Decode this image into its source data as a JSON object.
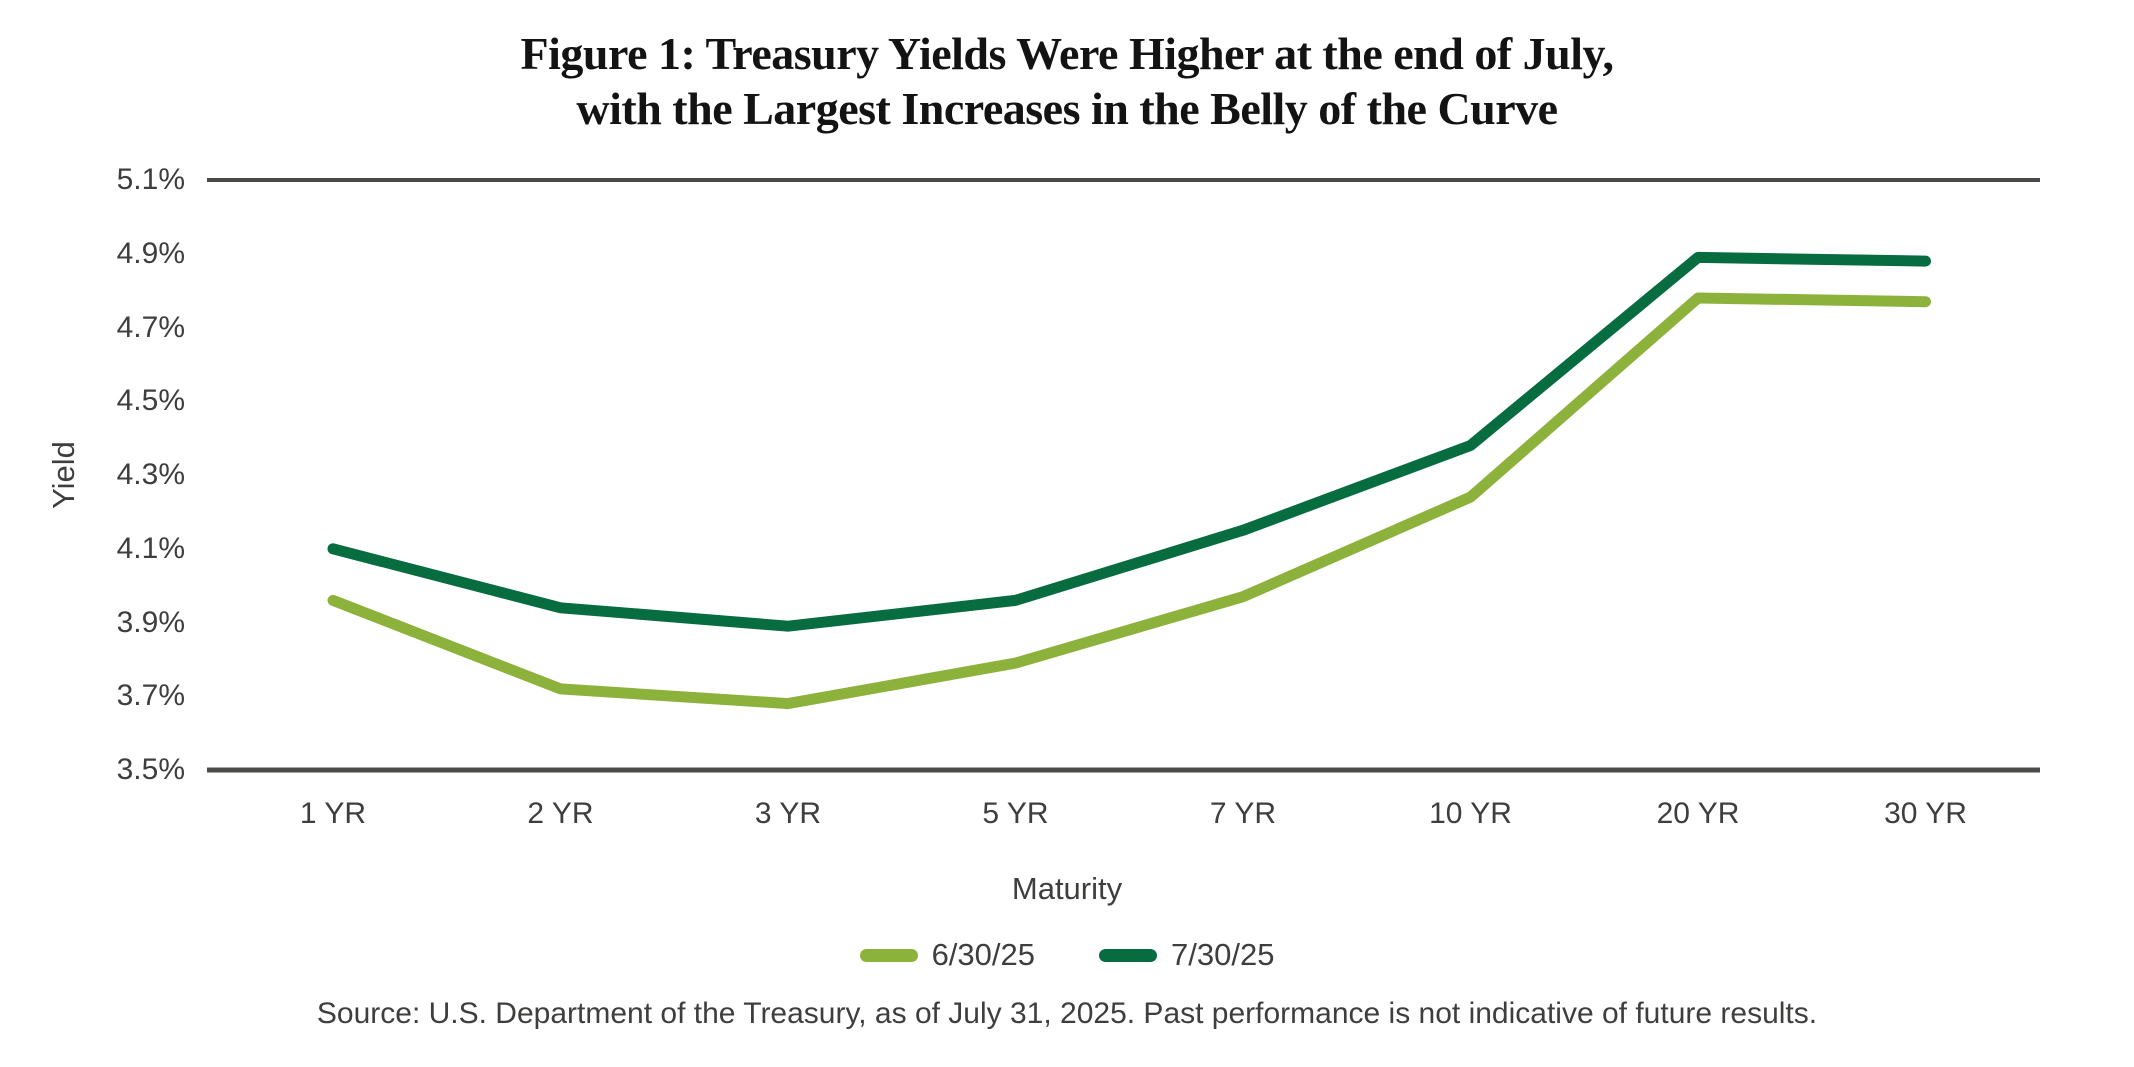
{
  "figure": {
    "title_line1": "Figure 1: Treasury Yields Were Higher at the end of July,",
    "title_line2": "with the Largest Increases in the Belly of the Curve",
    "source": "Source: U.S. Department of the Treasury, as of July 31, 2025. Past performance is not indicative of future results."
  },
  "colors": {
    "light_green": "#8DB23C",
    "dark_green": "#076C40",
    "axis_gray": "#4b4b4a",
    "text_gray": "#3e3e3d",
    "title_black": "#131313"
  },
  "chart_data": {
    "type": "line",
    "title": "Figure 1: Treasury Yields Were Higher at the end of July, with the Largest Increases in the Belly of the Curve",
    "categories": [
      "1 YR",
      "2 YR",
      "3 YR",
      "5 YR",
      "7 YR",
      "10 YR",
      "20 YR",
      "30 YR"
    ],
    "series": [
      {
        "name": "6/30/25",
        "color": "#8DB23C",
        "values": [
          3.96,
          3.72,
          3.68,
          3.79,
          3.97,
          4.24,
          4.78,
          4.77
        ]
      },
      {
        "name": "7/30/25",
        "color": "#076C40",
        "values": [
          4.1,
          3.94,
          3.89,
          3.96,
          4.15,
          4.38,
          4.89,
          4.88
        ]
      }
    ],
    "xlabel": "Maturity",
    "ylabel": "Yield",
    "ylim": [
      3.5,
      5.1
    ],
    "yticks": [
      "5.1%",
      "4.9%",
      "4.7%",
      "4.5%",
      "4.3%",
      "4.1%",
      "3.9%",
      "3.7%",
      "3.5%"
    ],
    "ytick_unit": "percent",
    "grid": "horizontal rule at top tick (5.1%) and baseline (3.5%) only",
    "legend_position": "bottom-center"
  }
}
